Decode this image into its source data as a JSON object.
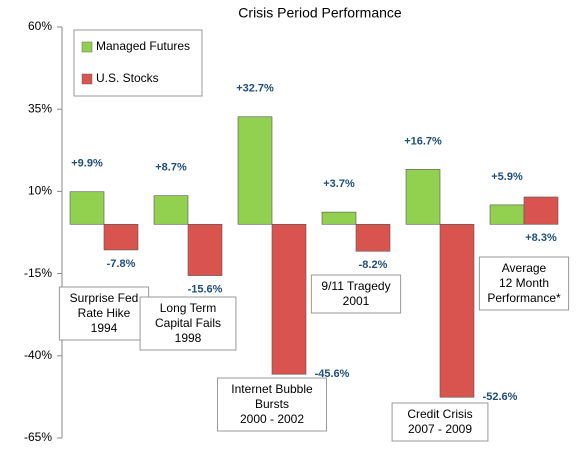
{
  "chart_data": {
    "type": "bar",
    "title": "Crisis Period Performance",
    "categories": [
      [
        "Surprise Fed",
        "Rate Hike",
        "1994"
      ],
      [
        "Long Term",
        "Capital Fails",
        "1998"
      ],
      [
        "Internet Bubble",
        "Bursts",
        "2000 -  2002"
      ],
      [
        "9/11 Tragedy",
        "2001"
      ],
      [
        "Credit Crisis",
        "2007 -  2009"
      ],
      [
        "Average",
        "12 Month",
        "Performance*"
      ]
    ],
    "series": [
      {
        "name": "Managed Futures",
        "color": "#92d050",
        "values": [
          9.9,
          8.7,
          32.7,
          3.7,
          16.7,
          5.9
        ],
        "value_labels": [
          "+9.9%",
          "+8.7%",
          "+32.7%",
          "+3.7%",
          "+16.7%",
          "+5.9%"
        ]
      },
      {
        "name": "U.S. Stocks",
        "color": "#d9534f",
        "values": [
          -7.8,
          -15.6,
          -45.6,
          -8.2,
          -52.6,
          8.3
        ],
        "value_labels": [
          "-7.8%",
          "-15.6%",
          "-45.6%",
          "-8.2%",
          "-52.6%",
          "+8.3%"
        ]
      }
    ],
    "ylim": [
      -65,
      60
    ],
    "yticks": [
      {
        "value": -65,
        "label": "-65%"
      },
      {
        "value": -40,
        "label": "-40%"
      },
      {
        "value": -15,
        "label": "-15%"
      },
      {
        "value": 10,
        "label": "10%"
      },
      {
        "value": 35,
        "label": "35%"
      },
      {
        "value": 60,
        "label": "60%"
      }
    ],
    "grid": false
  }
}
